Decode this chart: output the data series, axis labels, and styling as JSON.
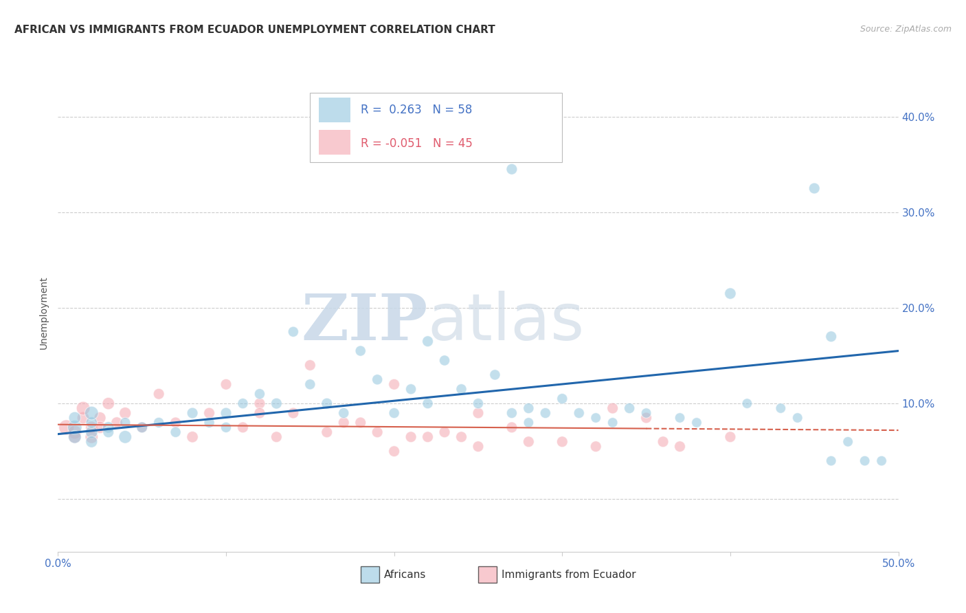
{
  "title": "AFRICAN VS IMMIGRANTS FROM ECUADOR UNEMPLOYMENT CORRELATION CHART",
  "source": "Source: ZipAtlas.com",
  "ylabel": "Unemployment",
  "xlim": [
    0.0,
    0.5
  ],
  "ylim": [
    -0.055,
    0.445
  ],
  "yticks": [
    0.0,
    0.1,
    0.2,
    0.3,
    0.4
  ],
  "ytick_labels": [
    "",
    "10.0%",
    "20.0%",
    "30.0%",
    "40.0%"
  ],
  "xticks": [
    0.0,
    0.1,
    0.2,
    0.3,
    0.4,
    0.5
  ],
  "xtick_labels": [
    "0.0%",
    "",
    "",
    "",
    "",
    "50.0%"
  ],
  "legend_r_blue": "0.263",
  "legend_n_blue": "58",
  "legend_r_pink": "-0.051",
  "legend_n_pink": "45",
  "blue_color": "#92c5de",
  "pink_color": "#f4a6b0",
  "line_blue": "#2166ac",
  "line_pink": "#d6604d",
  "watermark_zip": "ZIP",
  "watermark_atlas": "atlas",
  "blue_scatter_x": [
    0.01,
    0.01,
    0.01,
    0.02,
    0.02,
    0.02,
    0.02,
    0.03,
    0.03,
    0.04,
    0.04,
    0.05,
    0.06,
    0.07,
    0.08,
    0.09,
    0.1,
    0.1,
    0.11,
    0.12,
    0.13,
    0.14,
    0.15,
    0.16,
    0.17,
    0.18,
    0.19,
    0.2,
    0.21,
    0.22,
    0.23,
    0.24,
    0.25,
    0.26,
    0.27,
    0.28,
    0.28,
    0.29,
    0.3,
    0.31,
    0.32,
    0.33,
    0.34,
    0.35,
    0.37,
    0.38,
    0.4,
    0.41,
    0.43,
    0.44,
    0.45,
    0.46,
    0.47,
    0.48,
    0.49,
    0.27,
    0.46,
    0.22
  ],
  "blue_scatter_y": [
    0.075,
    0.065,
    0.085,
    0.07,
    0.08,
    0.06,
    0.09,
    0.075,
    0.07,
    0.08,
    0.065,
    0.075,
    0.08,
    0.07,
    0.09,
    0.08,
    0.075,
    0.09,
    0.1,
    0.11,
    0.1,
    0.175,
    0.12,
    0.1,
    0.09,
    0.155,
    0.125,
    0.09,
    0.115,
    0.1,
    0.145,
    0.115,
    0.1,
    0.13,
    0.09,
    0.095,
    0.08,
    0.09,
    0.105,
    0.09,
    0.085,
    0.08,
    0.095,
    0.09,
    0.085,
    0.08,
    0.215,
    0.1,
    0.095,
    0.085,
    0.325,
    0.04,
    0.06,
    0.04,
    0.04,
    0.345,
    0.17,
    0.165
  ],
  "blue_scatter_size": [
    220,
    180,
    160,
    160,
    140,
    150,
    200,
    140,
    130,
    120,
    180,
    130,
    120,
    120,
    130,
    120,
    120,
    130,
    120,
    120,
    130,
    120,
    120,
    130,
    120,
    120,
    120,
    120,
    120,
    120,
    120,
    120,
    120,
    120,
    120,
    120,
    110,
    120,
    120,
    120,
    110,
    110,
    120,
    110,
    110,
    110,
    140,
    110,
    110,
    110,
    130,
    110,
    110,
    110,
    110,
    130,
    130,
    130
  ],
  "pink_scatter_x": [
    0.005,
    0.01,
    0.01,
    0.015,
    0.015,
    0.02,
    0.02,
    0.025,
    0.025,
    0.03,
    0.035,
    0.04,
    0.05,
    0.06,
    0.07,
    0.08,
    0.09,
    0.1,
    0.11,
    0.12,
    0.12,
    0.13,
    0.14,
    0.15,
    0.16,
    0.17,
    0.18,
    0.19,
    0.2,
    0.21,
    0.22,
    0.23,
    0.24,
    0.25,
    0.27,
    0.28,
    0.3,
    0.32,
    0.33,
    0.35,
    0.36,
    0.37,
    0.4,
    0.25,
    0.2
  ],
  "pink_scatter_y": [
    0.075,
    0.07,
    0.065,
    0.085,
    0.095,
    0.075,
    0.065,
    0.085,
    0.075,
    0.1,
    0.08,
    0.09,
    0.075,
    0.11,
    0.08,
    0.065,
    0.09,
    0.12,
    0.075,
    0.1,
    0.09,
    0.065,
    0.09,
    0.14,
    0.07,
    0.08,
    0.08,
    0.07,
    0.12,
    0.065,
    0.065,
    0.07,
    0.065,
    0.09,
    0.075,
    0.06,
    0.06,
    0.055,
    0.095,
    0.085,
    0.06,
    0.055,
    0.065,
    0.055,
    0.05
  ],
  "pink_scatter_size": [
    250,
    200,
    180,
    160,
    200,
    160,
    180,
    150,
    160,
    160,
    140,
    150,
    130,
    130,
    130,
    140,
    130,
    130,
    130,
    130,
    130,
    130,
    130,
    130,
    130,
    130,
    130,
    130,
    130,
    130,
    130,
    130,
    130,
    130,
    130,
    130,
    130,
    130,
    130,
    130,
    130,
    130,
    130,
    130,
    130
  ],
  "blue_line_x0": 0.0,
  "blue_line_x1": 0.5,
  "blue_line_y0": 0.068,
  "blue_line_y1": 0.155,
  "pink_line_x0": 0.0,
  "pink_line_x1": 0.5,
  "pink_line_y0": 0.078,
  "pink_line_y1": 0.072
}
